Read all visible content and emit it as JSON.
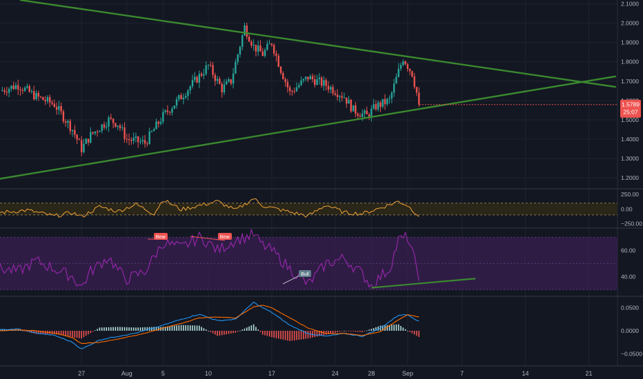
{
  "colors": {
    "background": "#131722",
    "grid": "#1f2330",
    "up_candle": "#26a69a",
    "down_candle": "#ef5350",
    "trendline": "#3b8a2f",
    "cci_line": "#f0a338",
    "rsi_line": "#9c27b0",
    "rsi_band": "#3a1f52",
    "macd_line": "#2196f3",
    "signal_line": "#ff6d00",
    "hist_pos": "#b2dfdb",
    "hist_neg": "#ef5350",
    "last_price_bg": "#ef5350",
    "axis_text": "#b2b5be"
  },
  "time_axis": {
    "ticks": [
      {
        "label": "27",
        "day": 27
      },
      {
        "label": "Aug",
        "day": 32
      },
      {
        "label": "5",
        "day": 36
      },
      {
        "label": "10",
        "day": 41
      },
      {
        "label": "17",
        "day": 48
      },
      {
        "label": "24",
        "day": 55
      },
      {
        "label": "28",
        "day": 59
      },
      {
        "label": "Sep",
        "day": 63
      },
      {
        "label": "7",
        "day": 69
      },
      {
        "label": "14",
        "day": 76
      },
      {
        "label": "21",
        "day": 83
      }
    ]
  },
  "chart_data": [
    {
      "type": "candlestick",
      "panel": "price",
      "ylim": [
        1.15,
        2.12
      ],
      "y_ticks": [
        "1.2000",
        "1.3000",
        "1.4000",
        "1.5000",
        "1.6000",
        "1.7000",
        "1.8000",
        "1.9000",
        "2.0000",
        "2.1000"
      ],
      "y_tick_values": [
        1.2,
        1.3,
        1.4,
        1.5,
        1.6,
        1.7,
        1.8,
        1.9,
        2.0,
        2.1
      ],
      "last_price": "1.5789",
      "last_price_value": 1.5789,
      "countdown": "25:07",
      "price_path_days": [
        18.0,
        20.0,
        22.0,
        24.0,
        26.0,
        27.0,
        28.0,
        30.0,
        31.0,
        32.0,
        34.0,
        36.0,
        38.0,
        41.0,
        42.5,
        43.5,
        45.0,
        46.0,
        47.0,
        48.0,
        49.0,
        50.0,
        52.0,
        54.0,
        56.0,
        57.0,
        58.5,
        59.5,
        61.0,
        62.0,
        62.5,
        63.5,
        64.3
      ],
      "price_path_values": [
        1.65,
        1.68,
        1.62,
        1.58,
        1.45,
        1.35,
        1.42,
        1.5,
        1.48,
        1.4,
        1.38,
        1.52,
        1.62,
        1.78,
        1.66,
        1.7,
        1.98,
        1.88,
        1.84,
        1.9,
        1.76,
        1.64,
        1.72,
        1.68,
        1.62,
        1.55,
        1.52,
        1.57,
        1.6,
        1.75,
        1.82,
        1.74,
        1.58
      ],
      "trendlines": [
        {
          "name": "upper-resistance",
          "x": [
            20.2,
            86.0
          ],
          "y": [
            2.12,
            1.67
          ]
        },
        {
          "name": "lower-support",
          "x": [
            18.0,
            86.0
          ],
          "y": [
            1.195,
            1.725
          ]
        }
      ]
    },
    {
      "type": "line",
      "panel": "cci",
      "ylim": [
        -300,
        320
      ],
      "y_ticks": [
        "250.00",
        "0.00",
        "−250.00"
      ],
      "y_tick_values": [
        250,
        0,
        -250
      ],
      "band": [
        -100,
        100
      ],
      "x": [
        18,
        21,
        24,
        26,
        27,
        29,
        31,
        33,
        35,
        36,
        38,
        40,
        42,
        44,
        46,
        47,
        48,
        50,
        52,
        54,
        56,
        58,
        60,
        62,
        63,
        64.3
      ],
      "values": [
        -60,
        -20,
        -120,
        -60,
        -130,
        40,
        -40,
        80,
        -80,
        160,
        -10,
        60,
        130,
        -20,
        180,
        60,
        20,
        -50,
        -120,
        70,
        -60,
        -80,
        20,
        130,
        60,
        -120
      ]
    },
    {
      "type": "line",
      "panel": "rsi",
      "ylim": [
        26,
        76
      ],
      "y_ticks": [
        "60.00",
        "40.00"
      ],
      "y_tick_values": [
        60,
        40
      ],
      "band": [
        30,
        70
      ],
      "x": [
        18,
        20,
        22,
        24,
        26,
        27,
        28,
        30,
        31,
        32,
        34,
        36,
        38,
        40,
        41,
        42,
        44,
        46,
        47,
        48,
        50,
        52,
        54,
        56,
        58,
        59,
        60,
        61,
        62,
        63,
        64.3
      ],
      "values": [
        46,
        44,
        52,
        46,
        40,
        32,
        44,
        55,
        45,
        38,
        44,
        66,
        62,
        70,
        66,
        60,
        68,
        72,
        64,
        60,
        46,
        34,
        50,
        54,
        42,
        33,
        40,
        46,
        68,
        70,
        40
      ],
      "annotations": [
        "Bear",
        "Bear",
        "Bull"
      ],
      "trendlines": [
        {
          "name": "rsi-support",
          "x": [
            59.0,
            70.5
          ],
          "y": [
            31.5,
            38.5
          ]
        }
      ]
    },
    {
      "type": "macd",
      "panel": "macd",
      "ylim": [
        -0.075,
        0.072
      ],
      "y_ticks": [
        "0.0500",
        "0.0000",
        "−0.0500"
      ],
      "y_tick_values": [
        0.05,
        0.0,
        -0.05
      ],
      "x": [
        18,
        20,
        22,
        24,
        26,
        27,
        29,
        31,
        33,
        35,
        36,
        38,
        40,
        42,
        44,
        46,
        47,
        48,
        50,
        52,
        54,
        56,
        58,
        60,
        62,
        63,
        64.3
      ],
      "macd": [
        0.002,
        0.004,
        -0.005,
        -0.01,
        -0.025,
        -0.04,
        -0.02,
        -0.012,
        -0.005,
        0.006,
        0.012,
        0.025,
        0.036,
        0.022,
        0.025,
        0.062,
        0.05,
        0.04,
        0.012,
        -0.006,
        -0.012,
        -0.006,
        -0.012,
        0.006,
        0.034,
        0.035,
        0.02
      ],
      "signal": [
        0.0,
        0.002,
        0.0,
        -0.005,
        -0.015,
        -0.028,
        -0.025,
        -0.018,
        -0.01,
        0.0,
        0.006,
        0.016,
        0.028,
        0.03,
        0.028,
        0.052,
        0.056,
        0.05,
        0.028,
        0.006,
        -0.006,
        -0.006,
        -0.01,
        -0.002,
        0.024,
        0.035,
        0.03
      ]
    }
  ]
}
